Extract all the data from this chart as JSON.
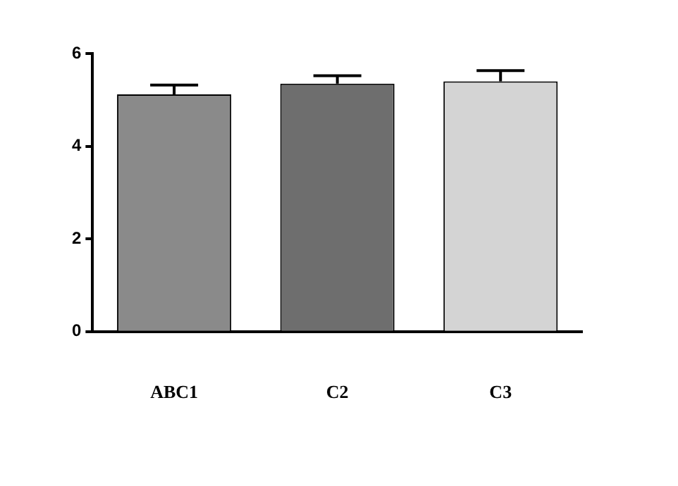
{
  "chart_data": {
    "type": "bar",
    "categories": [
      "ABC1",
      "C2",
      "C3"
    ],
    "values": [
      5.12,
      5.35,
      5.4
    ],
    "errors": [
      0.2,
      0.17,
      0.23
    ],
    "colors": [
      "#8a8a8a",
      "#6e6e6e",
      "#d4d4d4"
    ],
    "ylim": [
      0,
      6
    ],
    "yticks": [
      0,
      2,
      4,
      6
    ],
    "grid": false,
    "legend": false
  }
}
